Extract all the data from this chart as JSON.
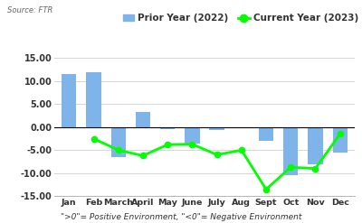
{
  "months": [
    "Jan",
    "Feb",
    "March",
    "April",
    "May",
    "June",
    "July",
    "Aug",
    "Sept",
    "Oct",
    "Nov",
    "Dec"
  ],
  "prior_year_2022": [
    11.5,
    12.0,
    -6.5,
    3.2,
    -0.5,
    -3.5,
    -0.7,
    -0.3,
    -3.0,
    -10.5,
    -8.0,
    -5.5
  ],
  "current_year_2023": [
    null,
    -2.5,
    -5.0,
    -6.2,
    -3.8,
    -3.7,
    -6.0,
    -5.0,
    -13.5,
    -8.7,
    -9.0,
    -1.5
  ],
  "bar_color": "#7EB4EA",
  "line_color": "#00FF00",
  "background_color": "#FFFFFF",
  "source_text": "Source: FTR",
  "legend_bar_label": "Prior Year (2022)",
  "legend_line_label": "Current Year (2023)",
  "footnote": "\">0\"= Positive Environment, \"<0\"= Negative Environment",
  "ylim": [
    -15,
    15
  ],
  "yticks": [
    -15.0,
    -10.0,
    -5.0,
    0.0,
    5.0,
    10.0,
    15.0
  ],
  "ytick_labels": [
    "-15.00",
    "-10.00",
    "-5.00",
    "0.00",
    "5.00",
    "10.00",
    "15.00"
  ]
}
